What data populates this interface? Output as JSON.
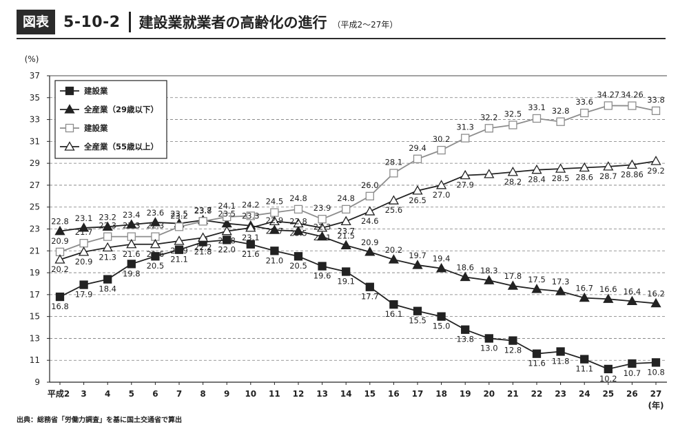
{
  "header": {
    "badge": "図表",
    "figure_number": "5-10-2",
    "title": "建設業就業者の高齢化の進行",
    "subtitle": "（平成2～27年）"
  },
  "source": "出典：総務省「労働力調査」を基に国土交通省で算出",
  "colors": {
    "black": "#222222",
    "gray": "#8c8c8c",
    "grid": "#777777"
  },
  "chart_data": {
    "type": "line",
    "title": "",
    "y_unit_label": "(%)",
    "x_unit_label": "(年)",
    "ylim": [
      9,
      37
    ],
    "yticks": [
      9,
      11,
      13,
      15,
      17,
      19,
      21,
      23,
      25,
      27,
      29,
      31,
      33,
      35,
      37
    ],
    "grid": "horizontal dashed",
    "legend_position": "top-left",
    "categories": [
      "平成2",
      "3",
      "4",
      "5",
      "6",
      "7",
      "8",
      "9",
      "10",
      "11",
      "12",
      "13",
      "14",
      "15",
      "16",
      "17",
      "18",
      "19",
      "20",
      "21",
      "22",
      "23",
      "24",
      "25",
      "26",
      "27"
    ],
    "series": [
      {
        "name": "建設業",
        "group": "29歳以下",
        "marker": "filled-square",
        "values": [
          16.8,
          17.9,
          18.4,
          19.8,
          20.5,
          21.1,
          21.8,
          22.0,
          21.6,
          21.0,
          20.5,
          19.6,
          19.1,
          17.7,
          16.1,
          15.5,
          15.0,
          13.8,
          13.0,
          12.8,
          11.6,
          11.8,
          11.1,
          10.2,
          10.7,
          10.8
        ],
        "labels": [
          "16.8",
          "17.9",
          "18.4",
          "19.8",
          "20.5",
          "21.1",
          "21.8",
          "22.0",
          "21.6",
          "21.0",
          "20.5",
          "19.6",
          "19.1",
          "17.7",
          "16.1",
          "15.5",
          "15.0",
          "13.8",
          "13.0",
          "12.8",
          "11.6",
          "11.8",
          "11.1",
          "10.2",
          "10.7",
          "10.8"
        ]
      },
      {
        "name": "全産業（29歳以下）",
        "group": "29歳以下",
        "marker": "filled-triangle",
        "values": [
          22.8,
          23.1,
          23.2,
          23.4,
          23.6,
          23.5,
          23.8,
          23.5,
          23.3,
          22.9,
          22.8,
          22.3,
          21.5,
          20.9,
          20.2,
          19.7,
          19.4,
          18.6,
          18.3,
          17.8,
          17.5,
          17.3,
          16.7,
          16.6,
          16.4,
          16.2
        ],
        "labels": [
          "22.8",
          "23.1",
          "23.2",
          "23.4",
          "23.6",
          "23.5",
          "23.8",
          "23.5",
          "23.3",
          "22.9",
          "22.8",
          "22.3",
          "21.5",
          "20.9",
          "20.2",
          "19.7",
          "19.4",
          "18.6",
          "18.3",
          "17.8",
          "17.5",
          "17.3",
          "16.7",
          "16.6",
          "16.4",
          "16.2"
        ]
      },
      {
        "name": "建設業",
        "group": "55歳以上",
        "marker": "open-square",
        "values": [
          20.9,
          21.7,
          22.3,
          22.3,
          22.3,
          23.2,
          23.7,
          24.1,
          24.2,
          24.5,
          24.8,
          23.9,
          24.8,
          26.0,
          28.1,
          29.4,
          30.2,
          31.3,
          32.2,
          32.5,
          33.1,
          32.8,
          33.6,
          34.27,
          34.26,
          33.8
        ],
        "labels": [
          "20.9",
          "21.7",
          "22.3",
          "22.3",
          "22.3",
          "23.2",
          "23.7",
          "24.1",
          "24.2",
          "24.5",
          "24.8",
          "23.9",
          "24.8",
          "26.0",
          "28.1",
          "29.4",
          "30.2",
          "31.3",
          "32.2",
          "32.5",
          "33.1",
          "32.8",
          "33.6",
          "34.27",
          "34.26",
          "33.8"
        ]
      },
      {
        "name": "全産業（55歳以上）",
        "group": "55歳以上",
        "marker": "open-triangle",
        "values": [
          20.2,
          20.9,
          21.3,
          21.6,
          21.6,
          21.9,
          22.2,
          22.8,
          23.1,
          23.7,
          23.5,
          23.1,
          23.7,
          24.6,
          25.6,
          26.5,
          27.0,
          27.9,
          28.0,
          28.2,
          28.4,
          28.5,
          28.6,
          28.7,
          28.86,
          29.2
        ],
        "labels": [
          "20.2",
          "20.9",
          "21.3",
          "21.6",
          "21.6",
          "21.9",
          "22.2",
          "22.8",
          "23.1",
          "23.7",
          "23.5",
          "23.1",
          "23.7",
          "24.6",
          "25.6",
          "26.5",
          "27.0",
          "27.9",
          "",
          "28.2",
          "28.4",
          "28.5",
          "28.6",
          "28.7",
          "28.86",
          "29.2"
        ]
      }
    ]
  }
}
